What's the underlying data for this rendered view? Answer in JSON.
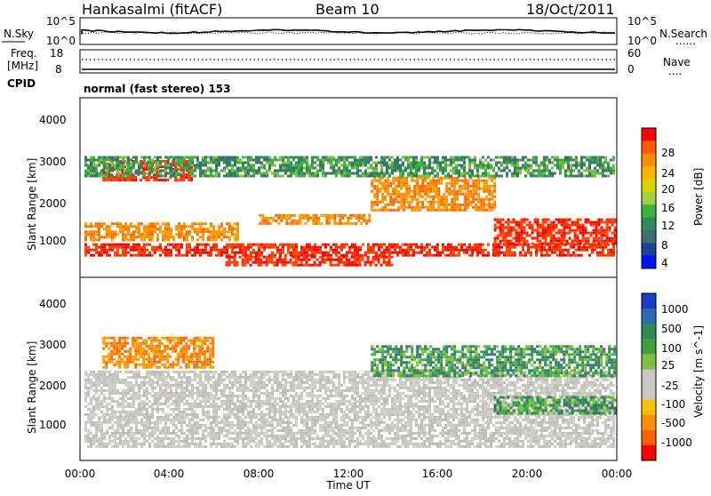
{
  "header": {
    "station": "Hankasalmi (fitACF)",
    "beam": "Beam 10",
    "date": "18/Oct/2011"
  },
  "summary_panels": {
    "nsky": {
      "label": "N.Sky",
      "ticks": [
        "10^5",
        "10^0"
      ],
      "right_ticks": [
        "10^5",
        "10^0"
      ],
      "right_label": "N.Search",
      "right_legend": "......"
    },
    "freq": {
      "label_line1": "Freq.",
      "label_line2": "[MHz]",
      "ticks": [
        "18",
        "8"
      ],
      "right_ticks": [
        "60",
        "0"
      ],
      "right_label": "Nave",
      "right_legend": "...."
    },
    "cpid": {
      "label": "CPID",
      "text": "normal (fast stereo) 153"
    }
  },
  "chart_data": [
    {
      "type": "heatmap",
      "name": "power",
      "ylabel": "Slant Range [km]",
      "yticks": [
        "4000",
        "3000",
        "2000",
        "1000"
      ],
      "ylim": [
        180,
        4500
      ],
      "xlim": [
        0,
        24
      ],
      "colorbar": {
        "label": "Power [dB]",
        "ticks": [
          "28",
          "24",
          "20",
          "16",
          "12",
          "8",
          "4"
        ],
        "colors": [
          "#ff0000",
          "#ff5a00",
          "#ff8c00",
          "#ffb400",
          "#e0d000",
          "#a0d040",
          "#40b040",
          "#2e8b57",
          "#3a7070",
          "#2040a0",
          "#0010ff"
        ]
      },
      "bands": [
        {
          "t0": 0.2,
          "t1": 23.9,
          "r0": 700,
          "r1": 1000,
          "level": "red"
        },
        {
          "t0": 0.2,
          "t1": 7.0,
          "r0": 1100,
          "r1": 1500,
          "level": "orange"
        },
        {
          "t0": 1.0,
          "t1": 5.0,
          "r0": 2500,
          "r1": 3000,
          "level": "red"
        },
        {
          "t0": 6.5,
          "t1": 14.0,
          "r0": 450,
          "r1": 700,
          "level": "red"
        },
        {
          "t0": 8.0,
          "t1": 13.0,
          "r0": 1500,
          "r1": 1700,
          "level": "orange"
        },
        {
          "t0": 13.0,
          "t1": 18.5,
          "r0": 1800,
          "r1": 2600,
          "level": "orange"
        },
        {
          "t0": 18.5,
          "t1": 23.9,
          "r0": 1000,
          "r1": 1600,
          "level": "red"
        },
        {
          "t0": 0.2,
          "t1": 23.9,
          "r0": 2600,
          "r1": 3100,
          "level": "green"
        }
      ]
    },
    {
      "type": "heatmap",
      "name": "velocity",
      "ylabel": "Slant Range [km]",
      "yticks": [
        "4000",
        "3000",
        "2000",
        "1000"
      ],
      "ylim": [
        180,
        4500
      ],
      "xlim": [
        0,
        24
      ],
      "xticks": [
        "00:00",
        "04:00",
        "08:00",
        "12:00",
        "16:00",
        "20:00",
        "00:00"
      ],
      "xlabel": "Time UT",
      "colorbar": {
        "label": "Velocity [m s^-1]",
        "ticks": [
          "1000",
          "500",
          "100",
          "25",
          "-25",
          "-100",
          "-500",
          "-1000"
        ],
        "colors": [
          "#1a3cc8",
          "#2a6cb8",
          "#2e8b57",
          "#40a040",
          "#80c040",
          "#c8c8c0",
          "#c8c8c0",
          "#ffc000",
          "#ff9000",
          "#ff6000",
          "#ff0000"
        ]
      },
      "bands": [
        {
          "t0": 0.2,
          "t1": 23.9,
          "r0": 500,
          "r1": 2300,
          "level": "gray"
        },
        {
          "t0": 1.0,
          "t1": 6.0,
          "r0": 2400,
          "r1": 3100,
          "level": "orange"
        },
        {
          "t0": 13.0,
          "t1": 23.9,
          "r0": 2200,
          "r1": 2900,
          "level": "green"
        },
        {
          "t0": 18.5,
          "t1": 23.9,
          "r0": 1300,
          "r1": 1700,
          "level": "green"
        }
      ]
    }
  ]
}
